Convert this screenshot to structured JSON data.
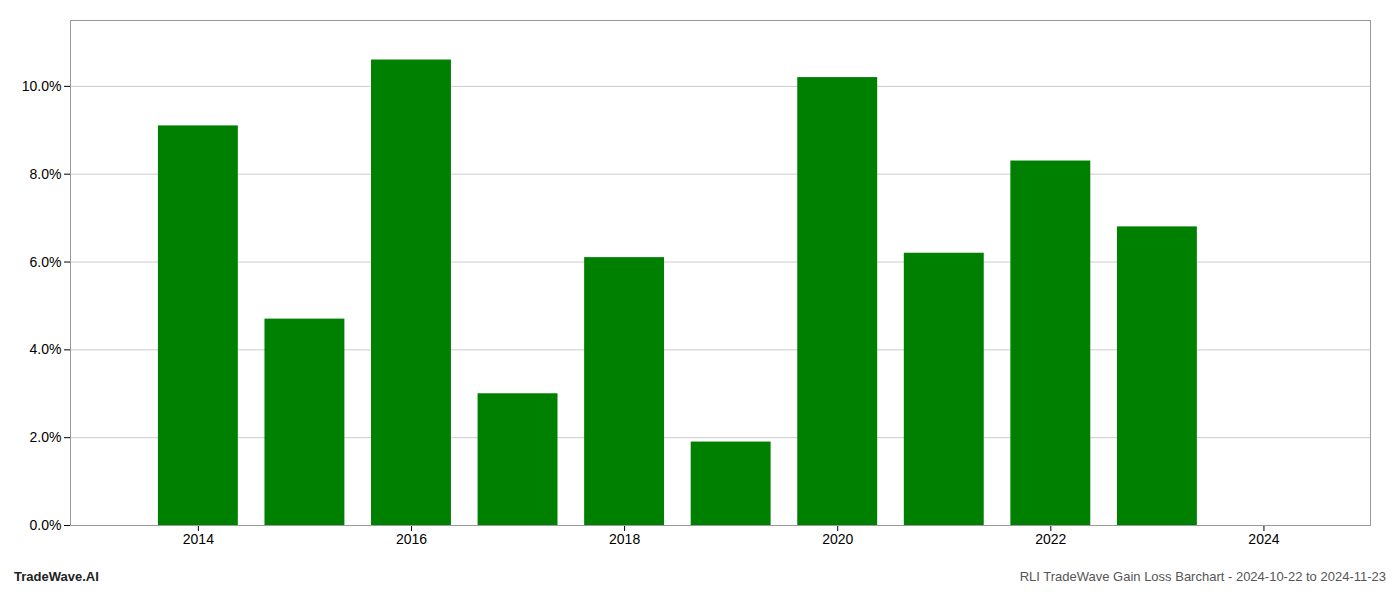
{
  "chart_data": {
    "type": "bar",
    "x": [
      2014,
      2015,
      2016,
      2017,
      2018,
      2019,
      2020,
      2021,
      2022,
      2023
    ],
    "values": [
      0.091,
      0.047,
      0.106,
      0.03,
      0.061,
      0.019,
      0.102,
      0.062,
      0.083,
      0.068
    ],
    "color": "#008000",
    "xlim": [
      2012.8,
      2025.0
    ],
    "xticks": [
      2014,
      2016,
      2018,
      2020,
      2022,
      2024
    ],
    "ylim": [
      0,
      0.115
    ],
    "yticks": [
      {
        "value": 0.0,
        "label": "0.0%"
      },
      {
        "value": 0.02,
        "label": "2.0%"
      },
      {
        "value": 0.04,
        "label": "4.0%"
      },
      {
        "value": 0.06,
        "label": "6.0%"
      },
      {
        "value": 0.08,
        "label": "8.0%"
      },
      {
        "value": 0.1,
        "label": "10.0%"
      }
    ],
    "grid": true,
    "annotations": [
      "TradeWave.AI",
      "RLI TradeWave Gain Loss Barchart - 2024-10-22 to 2024-11-23"
    ]
  }
}
